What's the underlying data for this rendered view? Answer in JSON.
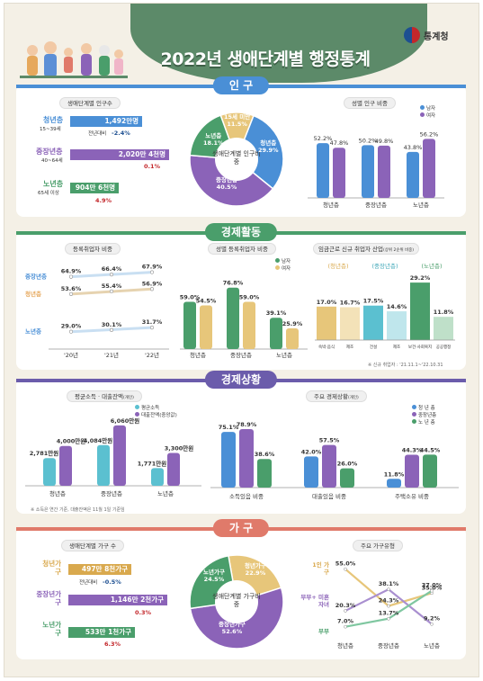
{
  "header": {
    "title": "2022년 생애단계별 행정통계",
    "agency": "통계청"
  },
  "colors": {
    "young": "#4a8fd6",
    "middle": "#8b63b8",
    "old": "#4a9e6b",
    "male": "#4a8fd6",
    "female": "#8b63b8",
    "accent1": "#e7c67a",
    "accent2": "#5bc0d0"
  },
  "population": {
    "section_title": "인 구",
    "left_title": "생애단계별 인구수",
    "rows": [
      {
        "name": "청년층",
        "range": "15~39세",
        "value": "1,492만명",
        "change_label": "전년대비",
        "change": "-2.4%",
        "fraction": 0.5
      },
      {
        "name": "중장년층",
        "range": "40~64세",
        "value": "2,020만 4천명",
        "change": "0.1%",
        "fraction": 0.86
      },
      {
        "name": "노년층",
        "range": "65세 이상",
        "value": "904만 6천명",
        "change": "4.9%",
        "fraction": 0.3
      }
    ],
    "pie": {
      "center": "생애단계별 인구비중",
      "slices": [
        {
          "label": "15세 미만",
          "value": 11.5,
          "color": "#e7c67a"
        },
        {
          "label": "청년층",
          "value": 29.9,
          "color": "#4a8fd6"
        },
        {
          "label": "중장년층",
          "value": 40.5,
          "color": "#8b63b8"
        },
        {
          "label": "노년층",
          "value": 18.1,
          "color": "#4a9e6b"
        }
      ]
    },
    "right_title": "성별 인구 비중",
    "legend": [
      "남자",
      "여자"
    ],
    "chart_data": {
      "type": "bar",
      "categories": [
        "청년층",
        "중장년층",
        "노년층"
      ],
      "series": [
        {
          "name": "남자",
          "values": [
            52.2,
            50.2,
            43.8
          ]
        },
        {
          "name": "여자",
          "values": [
            47.8,
            49.8,
            56.2
          ]
        }
      ]
    }
  },
  "economy": {
    "section_title": "경제활동",
    "reg_title": "등록취업자 비중",
    "line": {
      "x": [
        "'20년",
        "'21년",
        "'22년"
      ],
      "series": [
        {
          "name": "중장년층",
          "values": [
            64.9,
            66.4,
            67.9
          ]
        },
        {
          "name": "청년층",
          "values": [
            53.6,
            55.4,
            56.9
          ]
        },
        {
          "name": "노년층",
          "values": [
            29.0,
            30.1,
            31.7
          ]
        }
      ]
    },
    "gender_title": "성별 등록취업자 비중",
    "gender_legend": [
      "남자",
      "여자"
    ],
    "gender": {
      "categories": [
        "청년층",
        "중장년층",
        "노년층"
      ],
      "series": [
        {
          "name": "남자",
          "values": [
            59.0,
            76.8,
            39.1
          ]
        },
        {
          "name": "여자",
          "values": [
            54.5,
            59.0,
            25.9
          ]
        }
      ]
    },
    "new_title": "임금근로 신규 취업자 산업",
    "new_title_sub": "(상위 2순위 비중)",
    "groups": [
      {
        "name": "청년층",
        "items": [
          {
            "label": "숙박·음식",
            "value": "17.0%"
          },
          {
            "label": "제조",
            "value": "16.7%"
          }
        ]
      },
      {
        "name": "중장년층",
        "items": [
          {
            "label": "건설",
            "value": "17.5%"
          },
          {
            "label": "제조",
            "value": "14.6%"
          }
        ]
      },
      {
        "name": "노년층",
        "items": [
          {
            "label": "보건·사회복지",
            "value": "29.2%"
          },
          {
            "label": "공공행정",
            "value": "11.8%"
          }
        ]
      }
    ],
    "note": "※ 신규 취업자 : '21.11.1~'22.10.31"
  },
  "status": {
    "section_title": "경제상황",
    "income_title": "평균소득 · 대출잔액",
    "income_title_sub": "(개인)",
    "income_legend": [
      "평균소득",
      "대출잔액(중앙값)"
    ],
    "income": {
      "categories": [
        "청년층",
        "중장년층",
        "노년층"
      ],
      "series": [
        {
          "name": "평균소득",
          "values": [
            2781,
            4084,
            1771
          ],
          "labels": [
            "2,781만원",
            "4,084만원",
            "1,771만원"
          ]
        },
        {
          "name": "대출잔액(중앙값)",
          "values": [
            4000,
            6060,
            3300
          ],
          "labels": [
            "4,000만원",
            "6,060만원",
            "3,300만원"
          ]
        }
      ]
    },
    "main_title": "주요 경제상황",
    "main_title_sub": "(개인)",
    "main_legend": [
      "청 년 층",
      "중장년층",
      "노 년 층"
    ],
    "main": {
      "categories": [
        "소득있음 비중",
        "대출있음 비중",
        "주택소유 비중"
      ],
      "series": [
        {
          "name": "청년층",
          "values": [
            75.1,
            42.0,
            11.8
          ]
        },
        {
          "name": "중장년층",
          "values": [
            78.9,
            57.5,
            44.3
          ]
        },
        {
          "name": "노년층",
          "values": [
            38.6,
            26.0,
            44.5
          ]
        }
      ]
    },
    "note": "※ 소득은 연간 기준, 대출잔액은 11월 1일 기준임"
  },
  "household": {
    "section_title": "가 구",
    "left_title": "생애단계별 가구 수",
    "rows": [
      {
        "name": "청년가구",
        "value": "497만 8천가구",
        "change_label": "전년대비",
        "change": "-0.5%",
        "fraction": 0.42
      },
      {
        "name": "중장년가구",
        "value": "1,146만 2천가구",
        "change": "0.3%",
        "fraction": 0.86
      },
      {
        "name": "노년가구",
        "value": "533만 1천가구",
        "change": "6.3%",
        "fraction": 0.45
      }
    ],
    "pie": {
      "center": "생애단계별 가구비중",
      "slices": [
        {
          "label": "청년가구",
          "value": 22.9,
          "color": "#e7c67a"
        },
        {
          "label": "중장년가구",
          "value": 52.6,
          "color": "#8b63b8"
        },
        {
          "label": "노년가구",
          "value": 24.5,
          "color": "#4a9e6b"
        }
      ]
    },
    "right_title": "주요 가구유형",
    "types": {
      "categories": [
        "청년층",
        "중장년층",
        "노년층"
      ],
      "series": [
        {
          "name": "1인 가구",
          "values": [
            55.0,
            24.3,
            35.0
          ]
        },
        {
          "name": "부부+미혼자녀",
          "values": [
            20.3,
            38.1,
            9.2
          ]
        },
        {
          "name": "부부",
          "values": [
            7.0,
            13.7,
            37.0
          ]
        }
      ]
    },
    "type_labels": [
      "1인 가구",
      "부부+ 미혼자녀",
      "부부"
    ]
  }
}
